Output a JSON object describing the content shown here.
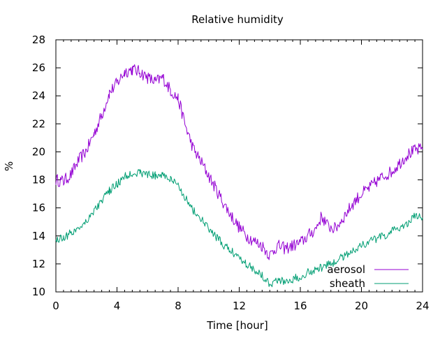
{
  "chart_data": {
    "type": "line",
    "title": "Relative humidity",
    "xlabel": "Time [hour]",
    "ylabel": "%",
    "xlim": [
      0,
      24
    ],
    "ylim": [
      10,
      28
    ],
    "xticks": [
      0,
      4,
      8,
      12,
      16,
      20,
      24
    ],
    "yticks": [
      10,
      12,
      14,
      16,
      18,
      20,
      22,
      24,
      26,
      28
    ],
    "grid": false,
    "legend": "bottom-right",
    "series": [
      {
        "name": "aerosol",
        "color": "#9400d3",
        "points": [
          [
            0,
            18.0
          ],
          [
            0.5,
            17.9
          ],
          [
            1,
            18.4
          ],
          [
            1.5,
            19.4
          ],
          [
            2,
            20.1
          ],
          [
            2.5,
            21.3
          ],
          [
            3,
            22.6
          ],
          [
            3.5,
            24.2
          ],
          [
            4,
            24.9
          ],
          [
            4.5,
            25.7
          ],
          [
            5,
            25.9
          ],
          [
            5.5,
            25.7
          ],
          [
            6,
            25.3
          ],
          [
            6.5,
            25.0
          ],
          [
            7,
            25.3
          ],
          [
            7.5,
            24.4
          ],
          [
            8,
            23.8
          ],
          [
            8.5,
            21.8
          ],
          [
            9,
            20.2
          ],
          [
            9.5,
            19.3
          ],
          [
            10,
            18.3
          ],
          [
            10.5,
            17.3
          ],
          [
            11,
            16.3
          ],
          [
            11.5,
            15.4
          ],
          [
            12,
            14.6
          ],
          [
            12.5,
            14.0
          ],
          [
            13,
            13.6
          ],
          [
            13.5,
            13.3
          ],
          [
            14,
            12.6
          ],
          [
            14.5,
            13.3
          ],
          [
            15,
            13.1
          ],
          [
            15.5,
            13.3
          ],
          [
            16,
            13.5
          ],
          [
            16.5,
            14.0
          ],
          [
            17,
            14.5
          ],
          [
            17.4,
            15.4
          ],
          [
            17.8,
            14.7
          ],
          [
            18.3,
            14.5
          ],
          [
            19,
            15.6
          ],
          [
            19.5,
            16.4
          ],
          [
            20,
            17.0
          ],
          [
            20.5,
            17.4
          ],
          [
            21,
            17.9
          ],
          [
            21.5,
            18.3
          ],
          [
            22,
            18.6
          ],
          [
            22.5,
            19.2
          ],
          [
            23,
            19.8
          ],
          [
            23.5,
            20.1
          ],
          [
            24,
            20.2
          ]
        ]
      },
      {
        "name": "sheath",
        "color": "#009e73",
        "points": [
          [
            0,
            13.7
          ],
          [
            0.5,
            13.9
          ],
          [
            1,
            14.2
          ],
          [
            1.5,
            14.6
          ],
          [
            2,
            15.1
          ],
          [
            2.5,
            15.8
          ],
          [
            3,
            16.5
          ],
          [
            3.5,
            17.2
          ],
          [
            4,
            17.7
          ],
          [
            4.5,
            18.2
          ],
          [
            5,
            18.5
          ],
          [
            5.5,
            18.5
          ],
          [
            6,
            18.4
          ],
          [
            6.5,
            18.3
          ],
          [
            7,
            18.4
          ],
          [
            7.5,
            18.0
          ],
          [
            8,
            17.6
          ],
          [
            8.5,
            16.7
          ],
          [
            9,
            15.8
          ],
          [
            9.5,
            15.2
          ],
          [
            10,
            14.5
          ],
          [
            10.5,
            13.9
          ],
          [
            11,
            13.3
          ],
          [
            11.5,
            12.9
          ],
          [
            12,
            12.5
          ],
          [
            12.5,
            12.0
          ],
          [
            13,
            11.6
          ],
          [
            13.5,
            11.2
          ],
          [
            14,
            10.6
          ],
          [
            14.5,
            10.8
          ],
          [
            15,
            10.8
          ],
          [
            15.5,
            10.9
          ],
          [
            16,
            11.1
          ],
          [
            16.5,
            11.4
          ],
          [
            17,
            11.6
          ],
          [
            17.5,
            11.8
          ],
          [
            18,
            12.0
          ],
          [
            18.5,
            12.3
          ],
          [
            19,
            12.7
          ],
          [
            19.5,
            13.0
          ],
          [
            20,
            13.3
          ],
          [
            20.5,
            13.6
          ],
          [
            21,
            13.8
          ],
          [
            21.5,
            14.0
          ],
          [
            22,
            14.3
          ],
          [
            22.5,
            14.6
          ],
          [
            23,
            14.9
          ],
          [
            23.5,
            15.4
          ],
          [
            24,
            15.3
          ]
        ]
      }
    ]
  }
}
